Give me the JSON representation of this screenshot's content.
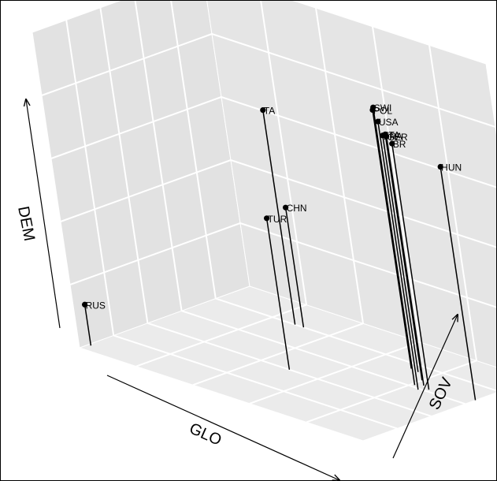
{
  "chart_data": {
    "type": "scatter",
    "projection": "3d",
    "axes": {
      "x": "GLO",
      "y": "DEM",
      "z": "SOV"
    },
    "grid": true,
    "drop_lines": true,
    "point_color": "#000000",
    "points": [
      {
        "label": "SWI",
        "GLO": 0.81,
        "SOV": 0.62,
        "DEM": 0.88
      },
      {
        "label": "USA",
        "GLO": 0.84,
        "SOV": 0.59,
        "DEM": 0.85
      },
      {
        "label": "POL",
        "GLO": 0.72,
        "SOV": 0.75,
        "DEM": 0.82
      },
      {
        "label": "GER",
        "GLO": 0.83,
        "SOV": 0.64,
        "DEM": 0.79
      },
      {
        "label": "ITA",
        "GLO": 0.8,
        "SOV": 0.68,
        "DEM": 0.78
      },
      {
        "label": "BR",
        "GLO": 0.86,
        "SOV": 0.62,
        "DEM": 0.78
      },
      {
        "label": "FRA",
        "GLO": 0.75,
        "SOV": 0.74,
        "DEM": 0.75
      },
      {
        "label": "HUN",
        "GLO": 1.0,
        "SOV": 0.66,
        "DEM": 0.74
      },
      {
        "label": "TA",
        "GLO": 0.28,
        "SOV": 0.8,
        "DEM": 0.68
      },
      {
        "label": "TUR",
        "GLO": 0.5,
        "SOV": 0.4,
        "DEM": 0.48
      },
      {
        "label": "CHN",
        "GLO": 0.31,
        "SOV": 0.8,
        "DEM": 0.38
      },
      {
        "label": "RUS",
        "GLO": 0.01,
        "SOV": 0.05,
        "DEM": 0.13
      }
    ]
  }
}
